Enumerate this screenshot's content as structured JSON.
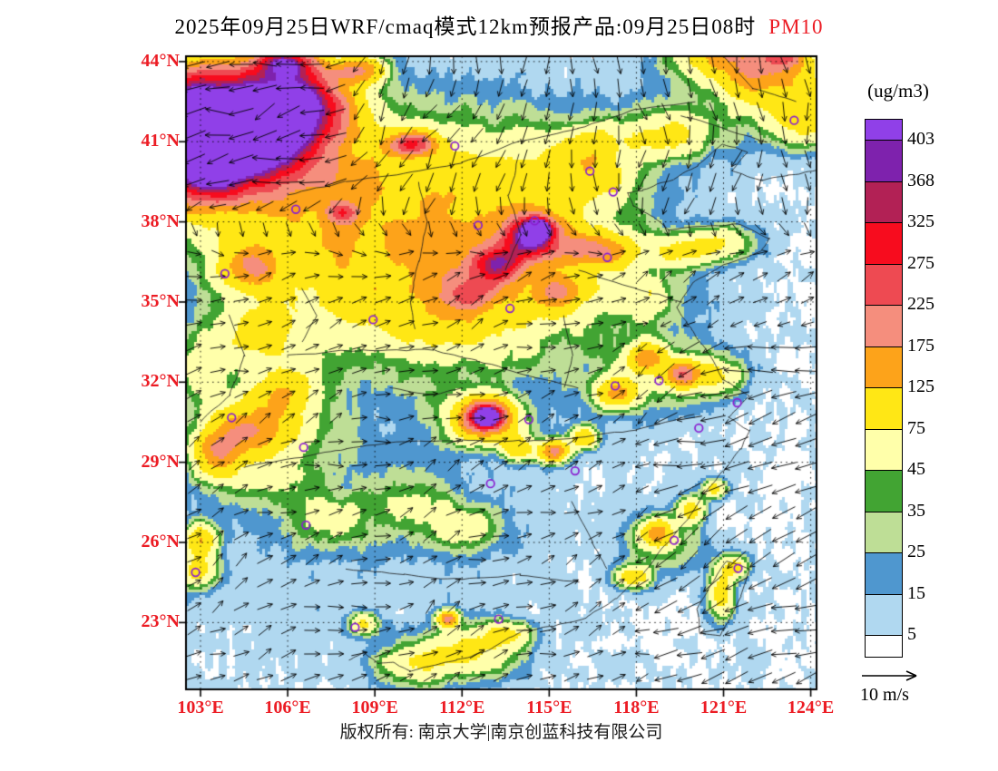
{
  "title": {
    "prefix": "2025年09月25日WRF/cmaq模式12km预报产品:09月25日08时",
    "pollutant": "PM10"
  },
  "legend": {
    "unit": "(ug/m3)",
    "wind_scale": "10 m/s"
  },
  "footer": {
    "text": "版权所有: 南京大学|南京创蓝科技有限公司"
  },
  "axes": {
    "lat": [
      "44°N",
      "41°N",
      "38°N",
      "35°N",
      "32°N",
      "29°N",
      "26°N",
      "23°N"
    ],
    "lon": [
      "103°E",
      "106°E",
      "109°E",
      "112°E",
      "115°E",
      "118°E",
      "121°E",
      "124°E"
    ]
  },
  "colorbar": {
    "labels": [
      "403",
      "368",
      "325",
      "275",
      "225",
      "175",
      "125",
      "75",
      "45",
      "35",
      "25",
      "15",
      "5"
    ]
  },
  "colors": {
    "axis_label": "#ec1c24",
    "title_pollutant": "#ec1c24",
    "station_marker": "#8a1fd0",
    "boundary": "#1a1a1a"
  },
  "chart_data": {
    "type": "heatmap",
    "title": "2025年09月25日WRF/cmaq模式12km预报产品:09月25日08时 PM10",
    "unit": "ug/m3",
    "lon_range": [
      102.5,
      124.2
    ],
    "lat_range": [
      20.5,
      44.2
    ],
    "lat_ticks": [
      44,
      41,
      38,
      35,
      32,
      29,
      26,
      23
    ],
    "lon_ticks": [
      103,
      106,
      109,
      112,
      115,
      118,
      121,
      124
    ],
    "levels": [
      5,
      15,
      25,
      35,
      45,
      75,
      125,
      175,
      225,
      275,
      325,
      368,
      403
    ],
    "level_colors_low_to_high": [
      "#ffffff",
      "#b0d8f0",
      "#4f97cf",
      "#bede96",
      "#42a433",
      "#ffffaa",
      "#ffe715",
      "#fda31a",
      "#f58e7d",
      "#ee4a52",
      "#f70c1e",
      "#b22155",
      "#7e22ad",
      "#9040e8"
    ],
    "wind_scale_mps": 10,
    "plumes": [
      [
        103.0,
        42.3,
        430,
        2.4,
        1.6
      ],
      [
        105.2,
        41.3,
        450,
        2.2,
        1.5
      ],
      [
        103.1,
        40.0,
        420,
        1.8,
        1.3
      ],
      [
        106.3,
        42.6,
        300,
        1.5,
        1.1
      ],
      [
        105.9,
        43.95,
        300,
        0.9,
        0.55
      ],
      [
        108.4,
        43.7,
        150,
        0.9,
        0.5
      ],
      [
        110.0,
        37.5,
        72,
        5.5,
        3.6
      ],
      [
        106.5,
        39.2,
        70,
        3.0,
        2.2
      ],
      [
        114.0,
        38.6,
        58,
        3.2,
        2.6
      ],
      [
        112.0,
        34.8,
        62,
        3.4,
        2.0
      ],
      [
        105.0,
        33.8,
        75,
        1.3,
        1.0
      ],
      [
        114.4,
        37.4,
        290,
        1.0,
        0.8
      ],
      [
        114.6,
        37.75,
        420,
        0.42,
        0.32
      ],
      [
        113.2,
        36.4,
        230,
        0.85,
        0.6
      ],
      [
        112.3,
        35.3,
        150,
        0.9,
        0.6
      ],
      [
        110.3,
        40.9,
        240,
        0.8,
        0.45
      ],
      [
        104.8,
        36.3,
        130,
        1.0,
        0.8
      ],
      [
        107.9,
        38.35,
        170,
        0.55,
        0.4
      ],
      [
        116.6,
        36.9,
        130,
        1.3,
        0.6
      ],
      [
        115.4,
        35.4,
        110,
        1.0,
        0.7
      ],
      [
        116.5,
        39.8,
        60,
        1.2,
        0.9
      ],
      [
        119.0,
        41.3,
        70,
        1.5,
        0.9
      ],
      [
        122.6,
        43.6,
        120,
        1.7,
        1.1
      ],
      [
        120.9,
        44.3,
        110,
        1.4,
        0.8
      ],
      [
        123.9,
        41.9,
        80,
        1.2,
        1.0
      ],
      [
        121.5,
        42.7,
        30,
        2.8,
        1.9
      ],
      [
        123.1,
        44.3,
        140,
        0.7,
        0.5
      ],
      [
        121.0,
        37.2,
        55,
        1.2,
        0.7
      ],
      [
        119.5,
        36.9,
        70,
        1.0,
        0.6
      ],
      [
        118.2,
        35.3,
        50,
        1.4,
        1.0
      ],
      [
        116.8,
        40.9,
        55,
        1.3,
        0.8
      ],
      [
        112.85,
        30.7,
        420,
        0.42,
        0.34
      ],
      [
        112.9,
        30.75,
        200,
        0.85,
        0.65
      ],
      [
        112.6,
        30.5,
        85,
        1.3,
        0.9
      ],
      [
        115.15,
        29.4,
        200,
        0.5,
        0.4
      ],
      [
        113.95,
        29.55,
        120,
        0.55,
        0.45
      ],
      [
        116.2,
        29.9,
        110,
        0.45,
        0.4
      ],
      [
        119.6,
        32.3,
        170,
        0.55,
        0.45
      ],
      [
        118.4,
        32.9,
        140,
        0.6,
        0.5
      ],
      [
        117.3,
        31.6,
        120,
        0.7,
        0.55
      ],
      [
        118.6,
        32.4,
        40,
        2.2,
        1.6
      ],
      [
        120.8,
        32.2,
        55,
        1.0,
        0.7
      ],
      [
        120.7,
        28.0,
        90,
        0.4,
        0.35
      ],
      [
        104.8,
        30.2,
        100,
        1.3,
        1.0
      ],
      [
        105.9,
        31.6,
        75,
        1.2,
        0.9
      ],
      [
        103.6,
        29.4,
        120,
        0.8,
        0.9
      ],
      [
        105.0,
        29.6,
        50,
        2.2,
        1.9
      ],
      [
        103.0,
        26.1,
        110,
        0.55,
        0.6
      ],
      [
        102.9,
        24.9,
        85,
        0.7,
        0.6
      ],
      [
        103.0,
        32.5,
        55,
        0.8,
        1.2
      ],
      [
        107.4,
        26.8,
        42,
        1.4,
        1.1
      ],
      [
        110.4,
        27.4,
        38,
        1.5,
        1.1
      ],
      [
        112.2,
        26.4,
        45,
        1.2,
        0.9
      ],
      [
        112.3,
        21.9,
        80,
        1.5,
        1.0
      ],
      [
        110.2,
        21.4,
        60,
        1.1,
        0.8
      ],
      [
        111.5,
        23.15,
        190,
        0.33,
        0.28
      ],
      [
        113.5,
        22.6,
        70,
        0.8,
        0.5
      ],
      [
        108.6,
        22.95,
        70,
        0.5,
        0.4
      ],
      [
        118.7,
        26.4,
        120,
        0.5,
        0.5
      ],
      [
        119.9,
        27.2,
        85,
        0.5,
        0.5
      ],
      [
        117.9,
        24.7,
        100,
        0.6,
        0.4
      ],
      [
        118.9,
        25.9,
        40,
        1.4,
        1.0
      ],
      [
        120.9,
        24.0,
        95,
        0.45,
        0.9
      ],
      [
        121.4,
        25.1,
        85,
        0.5,
        0.45
      ]
    ],
    "city_markers": [
      [
        116.4,
        39.9
      ],
      [
        117.2,
        39.12
      ],
      [
        114.5,
        38.04
      ],
      [
        112.55,
        37.87
      ],
      [
        111.75,
        40.84
      ],
      [
        123.43,
        41.8
      ],
      [
        103.84,
        36.06
      ],
      [
        106.28,
        38.47
      ],
      [
        108.94,
        34.34
      ],
      [
        113.65,
        34.76
      ],
      [
        117.0,
        36.67
      ],
      [
        118.78,
        32.06
      ],
      [
        117.27,
        31.86
      ],
      [
        121.47,
        31.23
      ],
      [
        120.15,
        30.28
      ],
      [
        114.3,
        30.6
      ],
      [
        112.98,
        28.2
      ],
      [
        115.89,
        28.68
      ],
      [
        119.3,
        26.08
      ],
      [
        113.26,
        23.13
      ],
      [
        108.32,
        22.82
      ],
      [
        106.63,
        26.65
      ],
      [
        102.83,
        24.88
      ],
      [
        104.07,
        30.67
      ],
      [
        106.55,
        29.56
      ],
      [
        121.5,
        25.03
      ]
    ]
  }
}
